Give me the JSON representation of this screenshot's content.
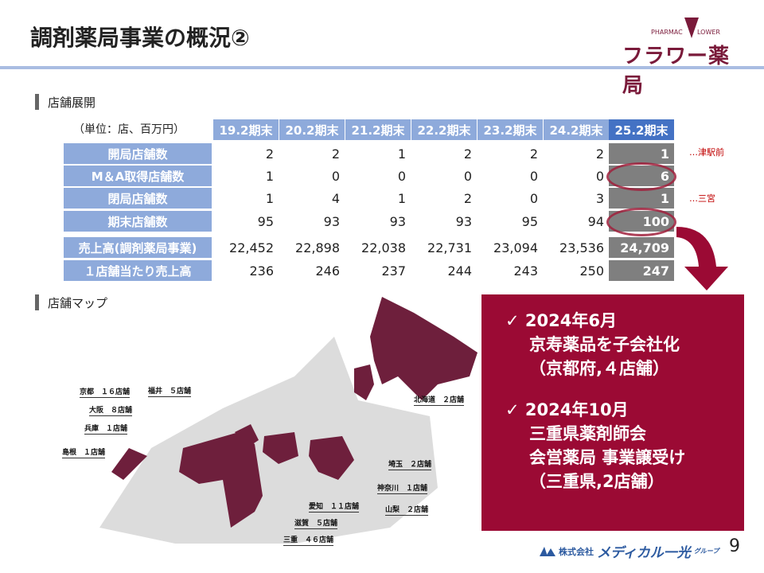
{
  "header": {
    "title": "調剤薬局事業の概況②",
    "logo_text": "フラワー薬局",
    "logo_en_left": "PHARMAC",
    "logo_en_right": "LOWER"
  },
  "sections": {
    "store_development": "店舗展開",
    "store_map": "店舗マップ"
  },
  "table": {
    "unit": "（単位：店、百万円）",
    "columns": [
      "19.2期末",
      "20.2期末",
      "21.2期末",
      "22.2期末",
      "23.2期末",
      "24.2期末",
      "25.2期末"
    ],
    "rows": [
      {
        "label": "開局店舗数",
        "values": [
          "2",
          "2",
          "1",
          "2",
          "2",
          "2",
          "1"
        ]
      },
      {
        "label": "M＆A取得店舗数",
        "values": [
          "1",
          "0",
          "0",
          "0",
          "0",
          "0",
          "6"
        ]
      },
      {
        "label": "閉局店舗数",
        "values": [
          "1",
          "4",
          "1",
          "2",
          "0",
          "3",
          "1"
        ]
      },
      {
        "label": "期末店舗数",
        "values": [
          "95",
          "93",
          "93",
          "93",
          "95",
          "94",
          "100"
        ]
      },
      {
        "label": "売上高(調剤薬局事業)",
        "values": [
          "22,452",
          "22,898",
          "22,038",
          "22,731",
          "23,094",
          "23,536",
          "24,709"
        ]
      },
      {
        "label": "１店舗当たり売上高",
        "values": [
          "236",
          "246",
          "237",
          "244",
          "243",
          "250",
          "247"
        ]
      }
    ],
    "notes": {
      "opened": "…津駅前",
      "closed": "…三宮"
    }
  },
  "map_labels": [
    "京都　１６店舗",
    "福井　５店舗",
    "大阪　８店舗",
    "兵庫　１店舗",
    "島根　１店舗",
    "北海道　２店舗",
    "埼玉　２店舗",
    "神奈川　１店舗",
    "愛知　１１店舗",
    "山梨　２店舗",
    "滋賀　５店舗",
    "三重　４６店舗"
  ],
  "callout": {
    "items": [
      {
        "line1": "✓ 2024年6月",
        "line2": "京寿薬品を子会社化",
        "line3": "（京都府,４店舗）"
      },
      {
        "line1": "✓ 2024年10月",
        "line2": "三重県薬剤師会",
        "line3": "会営薬局 事業譲受け",
        "line4": "（三重県,2店舗）"
      }
    ]
  },
  "footer": {
    "company": "株式会社",
    "brand": "メディカル一光",
    "group": "グループ",
    "page": "9"
  },
  "colors": {
    "accent": "#9b0a34",
    "header_blue": "#8eaadb",
    "current_blue": "#4472c4",
    "current_gray": "#7f7f7f"
  }
}
